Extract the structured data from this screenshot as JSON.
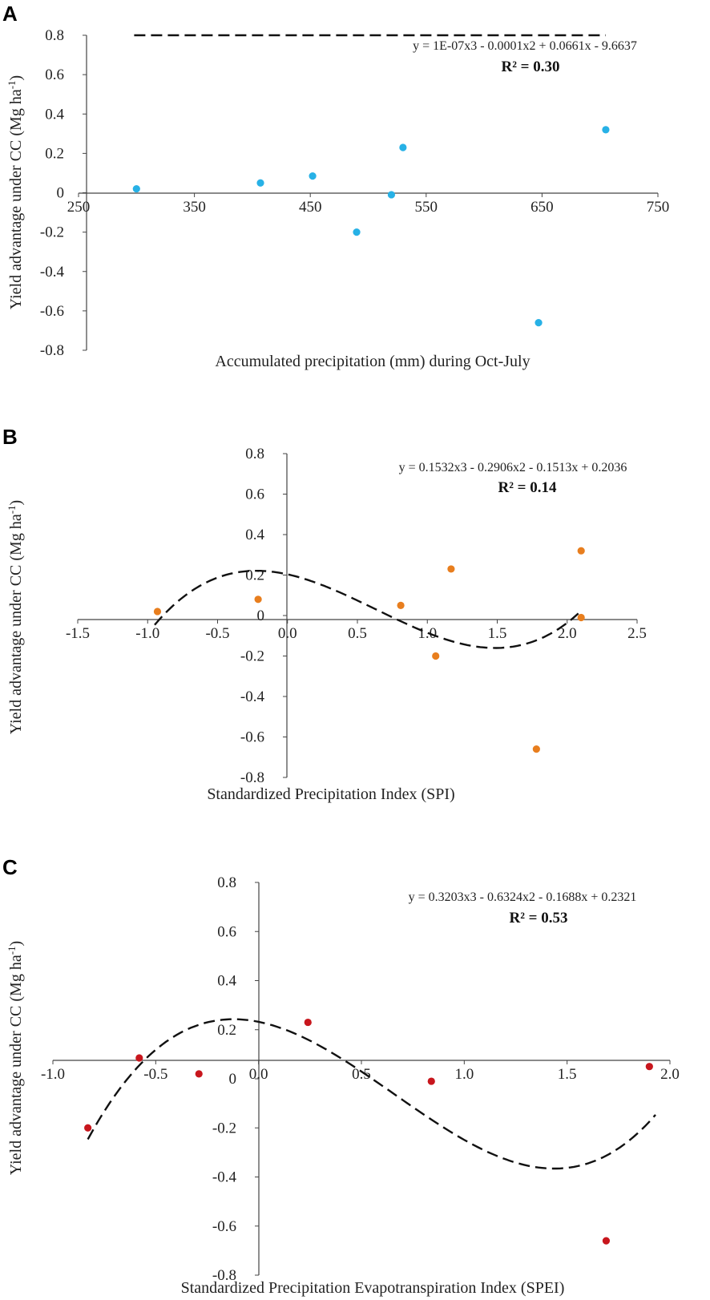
{
  "chart_data": [
    {
      "type": "scatter",
      "panel": "A",
      "xlabel": "Accumulated precipitation (mm) during Oct-July",
      "ylabel": "Yield advantage under CC (Mg ha",
      "ylabel_sup": "-1",
      "ylabel_close": ")",
      "equation": "y = 1E-07x3 - 0.0001x2 + 0.0661x - 9.6637",
      "r2": "R² = 0.30",
      "xlim": [
        250,
        750
      ],
      "ylim": [
        -0.8,
        0.8
      ],
      "x_ticks": [
        "250",
        "350",
        "450",
        "550",
        "650",
        "750"
      ],
      "y_ticks": [
        "0.8",
        "0.6",
        "0.4",
        "0.2",
        "0",
        "-0.2",
        "-0.4",
        "-0.6",
        "-0.8"
      ],
      "marker_color": "#27b1e6",
      "points": [
        {
          "x": 300,
          "y": 0.02
        },
        {
          "x": 407,
          "y": 0.05
        },
        {
          "x": 452,
          "y": 0.085
        },
        {
          "x": 490,
          "y": -0.2
        },
        {
          "x": 520,
          "y": -0.01
        },
        {
          "x": 530,
          "y": 0.23
        },
        {
          "x": 647,
          "y": -0.66
        },
        {
          "x": 705,
          "y": 0.32
        }
      ],
      "trend": {
        "coef": [
          1e-07,
          -0.0001,
          0.0661,
          -9.6637
        ],
        "x_range": [
          298,
          705
        ]
      }
    },
    {
      "type": "scatter",
      "panel": "B",
      "xlabel": "Standardized Precipitation Index (SPI)",
      "ylabel": "Yield advantage under CC (Mg ha",
      "ylabel_sup": "-1",
      "ylabel_close": ")",
      "equation": "y = 0.1532x3 - 0.2906x2 - 0.1513x + 0.2036",
      "r2": "R² = 0.14",
      "xlim": [
        -1.5,
        2.5
      ],
      "ylim": [
        -0.8,
        0.8
      ],
      "x_ticks": [
        "-1.5",
        "-1.0",
        "-0.5",
        "0.0",
        "0.5",
        "1.0",
        "1.5",
        "2.0",
        "2.5"
      ],
      "y_ticks": [
        "0.8",
        "0.6",
        "0.4",
        "0.2",
        "0",
        "-0.2",
        "-0.4",
        "-0.6",
        "-0.8"
      ],
      "marker_color": "#e87e1e",
      "points": [
        {
          "x": -0.93,
          "y": 0.02
        },
        {
          "x": -0.21,
          "y": 0.08
        },
        {
          "x": 0.81,
          "y": 0.05
        },
        {
          "x": 1.06,
          "y": -0.2
        },
        {
          "x": 1.17,
          "y": 0.23
        },
        {
          "x": 1.78,
          "y": -0.66
        },
        {
          "x": 2.1,
          "y": 0.32
        },
        {
          "x": 2.1,
          "y": -0.01
        }
      ],
      "trend": {
        "coef": [
          0.1532,
          -0.2906,
          -0.1513,
          0.2036
        ],
        "x_range": [
          -0.95,
          2.08
        ]
      }
    },
    {
      "type": "scatter",
      "panel": "C",
      "xlabel": "Standardized Precipitation Evapotranspiration Index (SPEI)",
      "ylabel": "Yield advantage under CC (Mg ha",
      "ylabel_sup": "-1",
      "ylabel_close": ")",
      "equation": "y = 0.3203x3 - 0.6324x2 - 0.1688x + 0.2321",
      "r2": "R² = 0.53",
      "xlim": [
        -1.0,
        2.0
      ],
      "ylim": [
        -0.8,
        0.8
      ],
      "x_ticks": [
        "-1.0",
        "-0.5",
        "0.0",
        "0.5",
        "1.0",
        "1.5",
        "2.0"
      ],
      "y_ticks": [
        "0.8",
        "0.6",
        "0.4",
        "0.2",
        "0",
        "-0.2",
        "-0.4",
        "-0.6",
        "-0.8"
      ],
      "marker_color": "#c8161d",
      "points": [
        {
          "x": -0.83,
          "y": -0.2
        },
        {
          "x": -0.58,
          "y": 0.085
        },
        {
          "x": -0.29,
          "y": 0.02
        },
        {
          "x": 0.24,
          "y": 0.23
        },
        {
          "x": 0.84,
          "y": -0.01
        },
        {
          "x": 1.69,
          "y": -0.66
        },
        {
          "x": 1.9,
          "y": 0.05
        }
      ],
      "trend": {
        "coef": [
          0.3203,
          -0.6324,
          -0.1688,
          0.2321
        ],
        "x_range": [
          -0.83,
          1.93
        ]
      }
    }
  ]
}
